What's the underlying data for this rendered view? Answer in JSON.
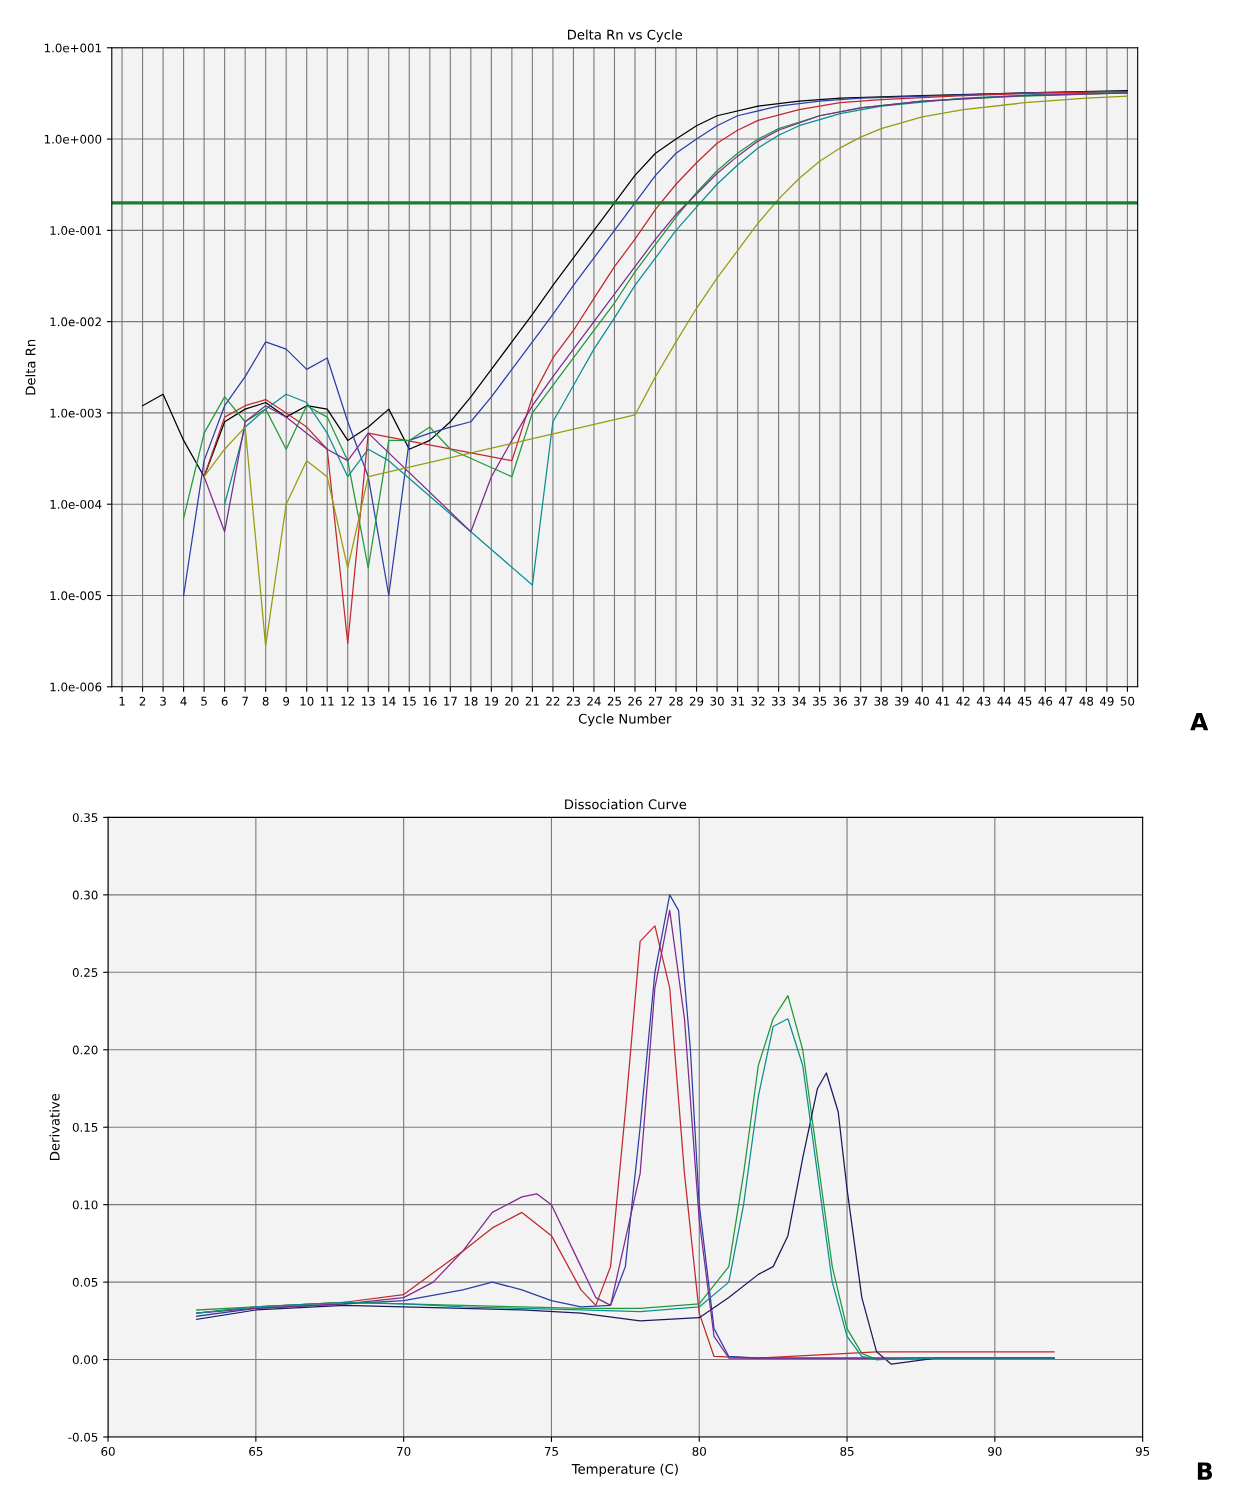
{
  "chart_data": [
    {
      "type": "line",
      "title": "Delta Rn vs Cycle",
      "xlabel": "Cycle Number",
      "ylabel": "Delta Rn",
      "log": true,
      "grid": true,
      "xlim": [
        0.5,
        50.5
      ],
      "xticks": [
        1,
        2,
        3,
        4,
        5,
        6,
        7,
        8,
        9,
        10,
        11,
        12,
        13,
        14,
        15,
        16,
        17,
        18,
        19,
        20,
        21,
        22,
        23,
        24,
        25,
        26,
        27,
        28,
        29,
        30,
        31,
        32,
        33,
        34,
        35,
        36,
        37,
        38,
        39,
        40,
        41,
        42,
        43,
        44,
        45,
        46,
        47,
        48,
        49,
        50
      ],
      "ylim": [
        1e-06,
        10
      ],
      "yticks": [
        {
          "value": 1e-06,
          "label": "1.0e-006"
        },
        {
          "value": 1e-05,
          "label": "1.0e-005"
        },
        {
          "value": 0.0001,
          "label": "1.0e-004"
        },
        {
          "value": 0.001,
          "label": "1.0e-003"
        },
        {
          "value": 0.01,
          "label": "1.0e-002"
        },
        {
          "value": 0.1,
          "label": "1.0e-001"
        },
        {
          "value": 1,
          "label": "1.0e+000"
        },
        {
          "value": 10,
          "label": "1.0e+001"
        }
      ],
      "ref_lines": [
        {
          "axis": "y",
          "value": 0.2,
          "color": "#1e7a2e"
        }
      ],
      "annotations": [
        "A"
      ],
      "series": [
        {
          "color": "#000000",
          "x": [
            2,
            3,
            4,
            5,
            6,
            7,
            8,
            9,
            10,
            11,
            12,
            13,
            14,
            15,
            16,
            17,
            18,
            19,
            20,
            21,
            22,
            23,
            24,
            25,
            26,
            27,
            28,
            29,
            30,
            32,
            34,
            36,
            40,
            45,
            50
          ],
          "values": [
            0.0012,
            0.0016,
            0.0005,
            0.0002,
            0.0008,
            0.0011,
            0.0013,
            0.0009,
            0.0012,
            0.0011,
            0.0005,
            0.0007,
            0.0011,
            0.0004,
            0.0005,
            0.0008,
            0.0015,
            0.003,
            0.006,
            0.012,
            0.025,
            0.05,
            0.1,
            0.2,
            0.4,
            0.7,
            1.0,
            1.4,
            1.8,
            2.3,
            2.6,
            2.8,
            3.0,
            3.2,
            3.4
          ]
        },
        {
          "color": "#2b3fa8",
          "x": [
            4,
            5,
            6,
            7,
            8,
            9,
            10,
            11,
            12,
            13,
            14,
            15,
            16,
            17,
            18,
            19,
            20,
            21,
            22,
            23,
            24,
            25,
            26,
            27,
            28,
            29,
            30,
            31,
            33,
            35,
            37,
            41,
            45,
            50
          ],
          "values": [
            1e-05,
            0.0003,
            0.0012,
            0.0025,
            0.006,
            0.005,
            0.003,
            0.004,
            0.0008,
            0.0002,
            1e-05,
            0.0005,
            0.0006,
            0.0007,
            0.0008,
            0.0015,
            0.003,
            0.006,
            0.012,
            0.025,
            0.05,
            0.1,
            0.2,
            0.4,
            0.7,
            1.0,
            1.4,
            1.8,
            2.3,
            2.6,
            2.8,
            3.0,
            3.2,
            3.3
          ]
        },
        {
          "color": "#c0282d",
          "x": [
            5,
            6,
            7,
            8,
            9,
            10,
            11,
            12,
            13,
            20,
            21,
            22,
            23,
            24,
            25,
            26,
            27,
            28,
            29,
            30,
            31,
            32,
            34,
            36,
            38,
            42,
            46,
            50
          ],
          "values": [
            0.0002,
            0.0009,
            0.0012,
            0.0014,
            0.001,
            0.0007,
            0.0004,
            3e-06,
            0.0006,
            0.0003,
            0.0015,
            0.004,
            0.008,
            0.018,
            0.04,
            0.08,
            0.17,
            0.32,
            0.55,
            0.9,
            1.25,
            1.6,
            2.1,
            2.5,
            2.7,
            3.0,
            3.2,
            3.3
          ]
        },
        {
          "color": "#1f9a3a",
          "x": [
            4,
            5,
            6,
            7,
            8,
            9,
            10,
            11,
            12,
            13,
            14,
            15,
            16,
            17,
            20,
            21,
            22,
            23,
            24,
            25,
            26,
            27,
            28,
            29,
            30,
            31,
            32,
            33,
            35,
            37,
            40,
            44,
            50
          ],
          "values": [
            7e-05,
            0.0006,
            0.0015,
            0.0008,
            0.0011,
            0.0004,
            0.0012,
            0.0009,
            0.0003,
            2e-05,
            0.0005,
            0.0005,
            0.0007,
            0.0004,
            0.0002,
            0.001,
            0.002,
            0.004,
            0.008,
            0.016,
            0.035,
            0.07,
            0.14,
            0.26,
            0.45,
            0.7,
            1.0,
            1.3,
            1.8,
            2.2,
            2.6,
            2.9,
            3.2
          ]
        },
        {
          "color": "#0a8f8f",
          "x": [
            6,
            7,
            8,
            9,
            10,
            11,
            12,
            13,
            14,
            21,
            22,
            23,
            24,
            25,
            26,
            27,
            28,
            29,
            30,
            31,
            32,
            33,
            34,
            36,
            38,
            42,
            46,
            50
          ],
          "values": [
            0.0001,
            0.0007,
            0.0011,
            0.0016,
            0.0013,
            0.0006,
            0.0002,
            0.0004,
            0.0003,
            1.3e-05,
            0.0008,
            0.002,
            0.005,
            0.011,
            0.025,
            0.05,
            0.1,
            0.18,
            0.32,
            0.52,
            0.8,
            1.1,
            1.4,
            1.9,
            2.3,
            2.8,
            3.1,
            3.2
          ]
        },
        {
          "color": "#7d2a8c",
          "x": [
            5,
            6,
            7,
            8,
            9,
            10,
            11,
            12,
            13,
            18,
            19,
            20,
            21,
            22,
            23,
            24,
            25,
            26,
            27,
            28,
            29,
            30,
            31,
            32,
            33,
            34,
            35,
            37,
            40,
            45,
            50
          ],
          "values": [
            0.0002,
            5e-05,
            0.0008,
            0.0012,
            0.0009,
            0.0006,
            0.0004,
            0.0003,
            0.0006,
            5e-05,
            0.0002,
            0.0005,
            0.0012,
            0.0025,
            0.005,
            0.01,
            0.02,
            0.04,
            0.08,
            0.15,
            0.25,
            0.42,
            0.65,
            0.95,
            1.25,
            1.5,
            1.8,
            2.2,
            2.6,
            3.0,
            3.2
          ]
        },
        {
          "color": "#9a9a10",
          "x": [
            5,
            6,
            7,
            8,
            9,
            10,
            11,
            12,
            13,
            26,
            27,
            28,
            29,
            30,
            31,
            32,
            33,
            34,
            35,
            36,
            37,
            38,
            40,
            42,
            45,
            48,
            50
          ],
          "values": [
            0.0002,
            0.0004,
            0.0007,
            2.8e-06,
            0.0001,
            0.0003,
            0.0002,
            2e-05,
            0.0002,
            0.00095,
            0.0025,
            0.006,
            0.014,
            0.03,
            0.06,
            0.12,
            0.22,
            0.37,
            0.57,
            0.8,
            1.05,
            1.3,
            1.75,
            2.1,
            2.5,
            2.8,
            2.95
          ]
        }
      ]
    },
    {
      "type": "line",
      "title": "Dissociation Curve",
      "xlabel": "Temperature (C)",
      "ylabel": "Derivative",
      "grid": true,
      "xlim": [
        60,
        95
      ],
      "xticks": [
        60,
        65,
        70,
        75,
        80,
        85,
        90,
        95
      ],
      "ylim": [
        -0.05,
        0.35
      ],
      "yticks": [
        {
          "value": -0.05,
          "label": "-0.05"
        },
        {
          "value": 0,
          "label": "0.00"
        },
        {
          "value": 0.05,
          "label": "0.05"
        },
        {
          "value": 0.1,
          "label": "0.10"
        },
        {
          "value": 0.15,
          "label": "0.15"
        },
        {
          "value": 0.2,
          "label": "0.20"
        },
        {
          "value": 0.25,
          "label": "0.25"
        },
        {
          "value": 0.3,
          "label": "0.30"
        },
        {
          "value": 0.35,
          "label": "0.35"
        }
      ],
      "annotations": [
        "B"
      ],
      "series": [
        {
          "color": "#c0282d",
          "x": [
            63,
            65,
            68,
            70,
            72,
            73,
            74,
            75,
            76,
            76.5,
            77,
            77.5,
            78,
            78.5,
            79,
            79.5,
            80,
            80.5,
            82,
            86,
            92
          ],
          "values": [
            0.03,
            0.034,
            0.037,
            0.042,
            0.07,
            0.085,
            0.095,
            0.08,
            0.045,
            0.035,
            0.06,
            0.16,
            0.27,
            0.28,
            0.24,
            0.12,
            0.03,
            0.002,
            0.001,
            0.005,
            0.005
          ]
        },
        {
          "color": "#2b3fa8",
          "x": [
            63,
            65,
            68,
            70,
            72,
            73,
            74,
            75,
            76,
            77,
            77.5,
            78,
            78.5,
            79,
            79.3,
            79.7,
            80,
            80.5,
            81,
            82,
            86,
            92
          ],
          "values": [
            0.028,
            0.033,
            0.036,
            0.038,
            0.045,
            0.05,
            0.045,
            0.038,
            0.034,
            0.035,
            0.06,
            0.15,
            0.25,
            0.3,
            0.29,
            0.2,
            0.1,
            0.02,
            0.002,
            0.001,
            0.001,
            0.001
          ]
        },
        {
          "color": "#1f9a3a",
          "x": [
            63,
            65,
            68,
            70,
            72,
            74,
            76,
            78,
            80,
            81,
            81.5,
            82,
            82.5,
            83,
            83.5,
            84,
            84.5,
            85,
            85.5,
            86,
            87,
            92
          ],
          "values": [
            0.032,
            0.034,
            0.037,
            0.036,
            0.035,
            0.034,
            0.033,
            0.033,
            0.036,
            0.06,
            0.12,
            0.19,
            0.22,
            0.235,
            0.2,
            0.13,
            0.06,
            0.02,
            0.004,
            0.0,
            0.001,
            0.001
          ]
        },
        {
          "color": "#1a1a5a",
          "x": [
            63,
            65,
            68,
            70,
            72,
            74,
            76,
            78,
            80,
            81,
            82,
            82.5,
            83,
            83.5,
            84,
            84.3,
            84.7,
            85,
            85.5,
            86,
            86.5,
            88,
            92
          ],
          "values": [
            0.026,
            0.032,
            0.035,
            0.034,
            0.033,
            0.032,
            0.03,
            0.025,
            0.027,
            0.04,
            0.055,
            0.06,
            0.08,
            0.13,
            0.175,
            0.185,
            0.16,
            0.11,
            0.04,
            0.005,
            -0.003,
            0.001,
            0.001
          ]
        },
        {
          "color": "#7d2a8c",
          "x": [
            63,
            65,
            68,
            70,
            71,
            72,
            73,
            74,
            74.5,
            75,
            76,
            76.5,
            77,
            78,
            78.5,
            79,
            79.5,
            80,
            80.5,
            81,
            83,
            86,
            92
          ],
          "values": [
            0.03,
            0.033,
            0.036,
            0.04,
            0.05,
            0.07,
            0.095,
            0.105,
            0.107,
            0.1,
            0.06,
            0.04,
            0.035,
            0.12,
            0.24,
            0.29,
            0.22,
            0.09,
            0.015,
            0.001,
            0.001,
            0.001,
            0.001
          ]
        },
        {
          "color": "#0a8f8f",
          "x": [
            63,
            65,
            68,
            70,
            72,
            74,
            76,
            78,
            80,
            81,
            81.5,
            82,
            82.5,
            83,
            83.5,
            84,
            84.5,
            85,
            85.5,
            86,
            88,
            92
          ],
          "values": [
            0.03,
            0.034,
            0.037,
            0.036,
            0.034,
            0.033,
            0.032,
            0.031,
            0.034,
            0.05,
            0.1,
            0.17,
            0.215,
            0.22,
            0.19,
            0.12,
            0.05,
            0.015,
            0.002,
            0.0,
            0.001,
            0.001
          ]
        }
      ]
    }
  ]
}
